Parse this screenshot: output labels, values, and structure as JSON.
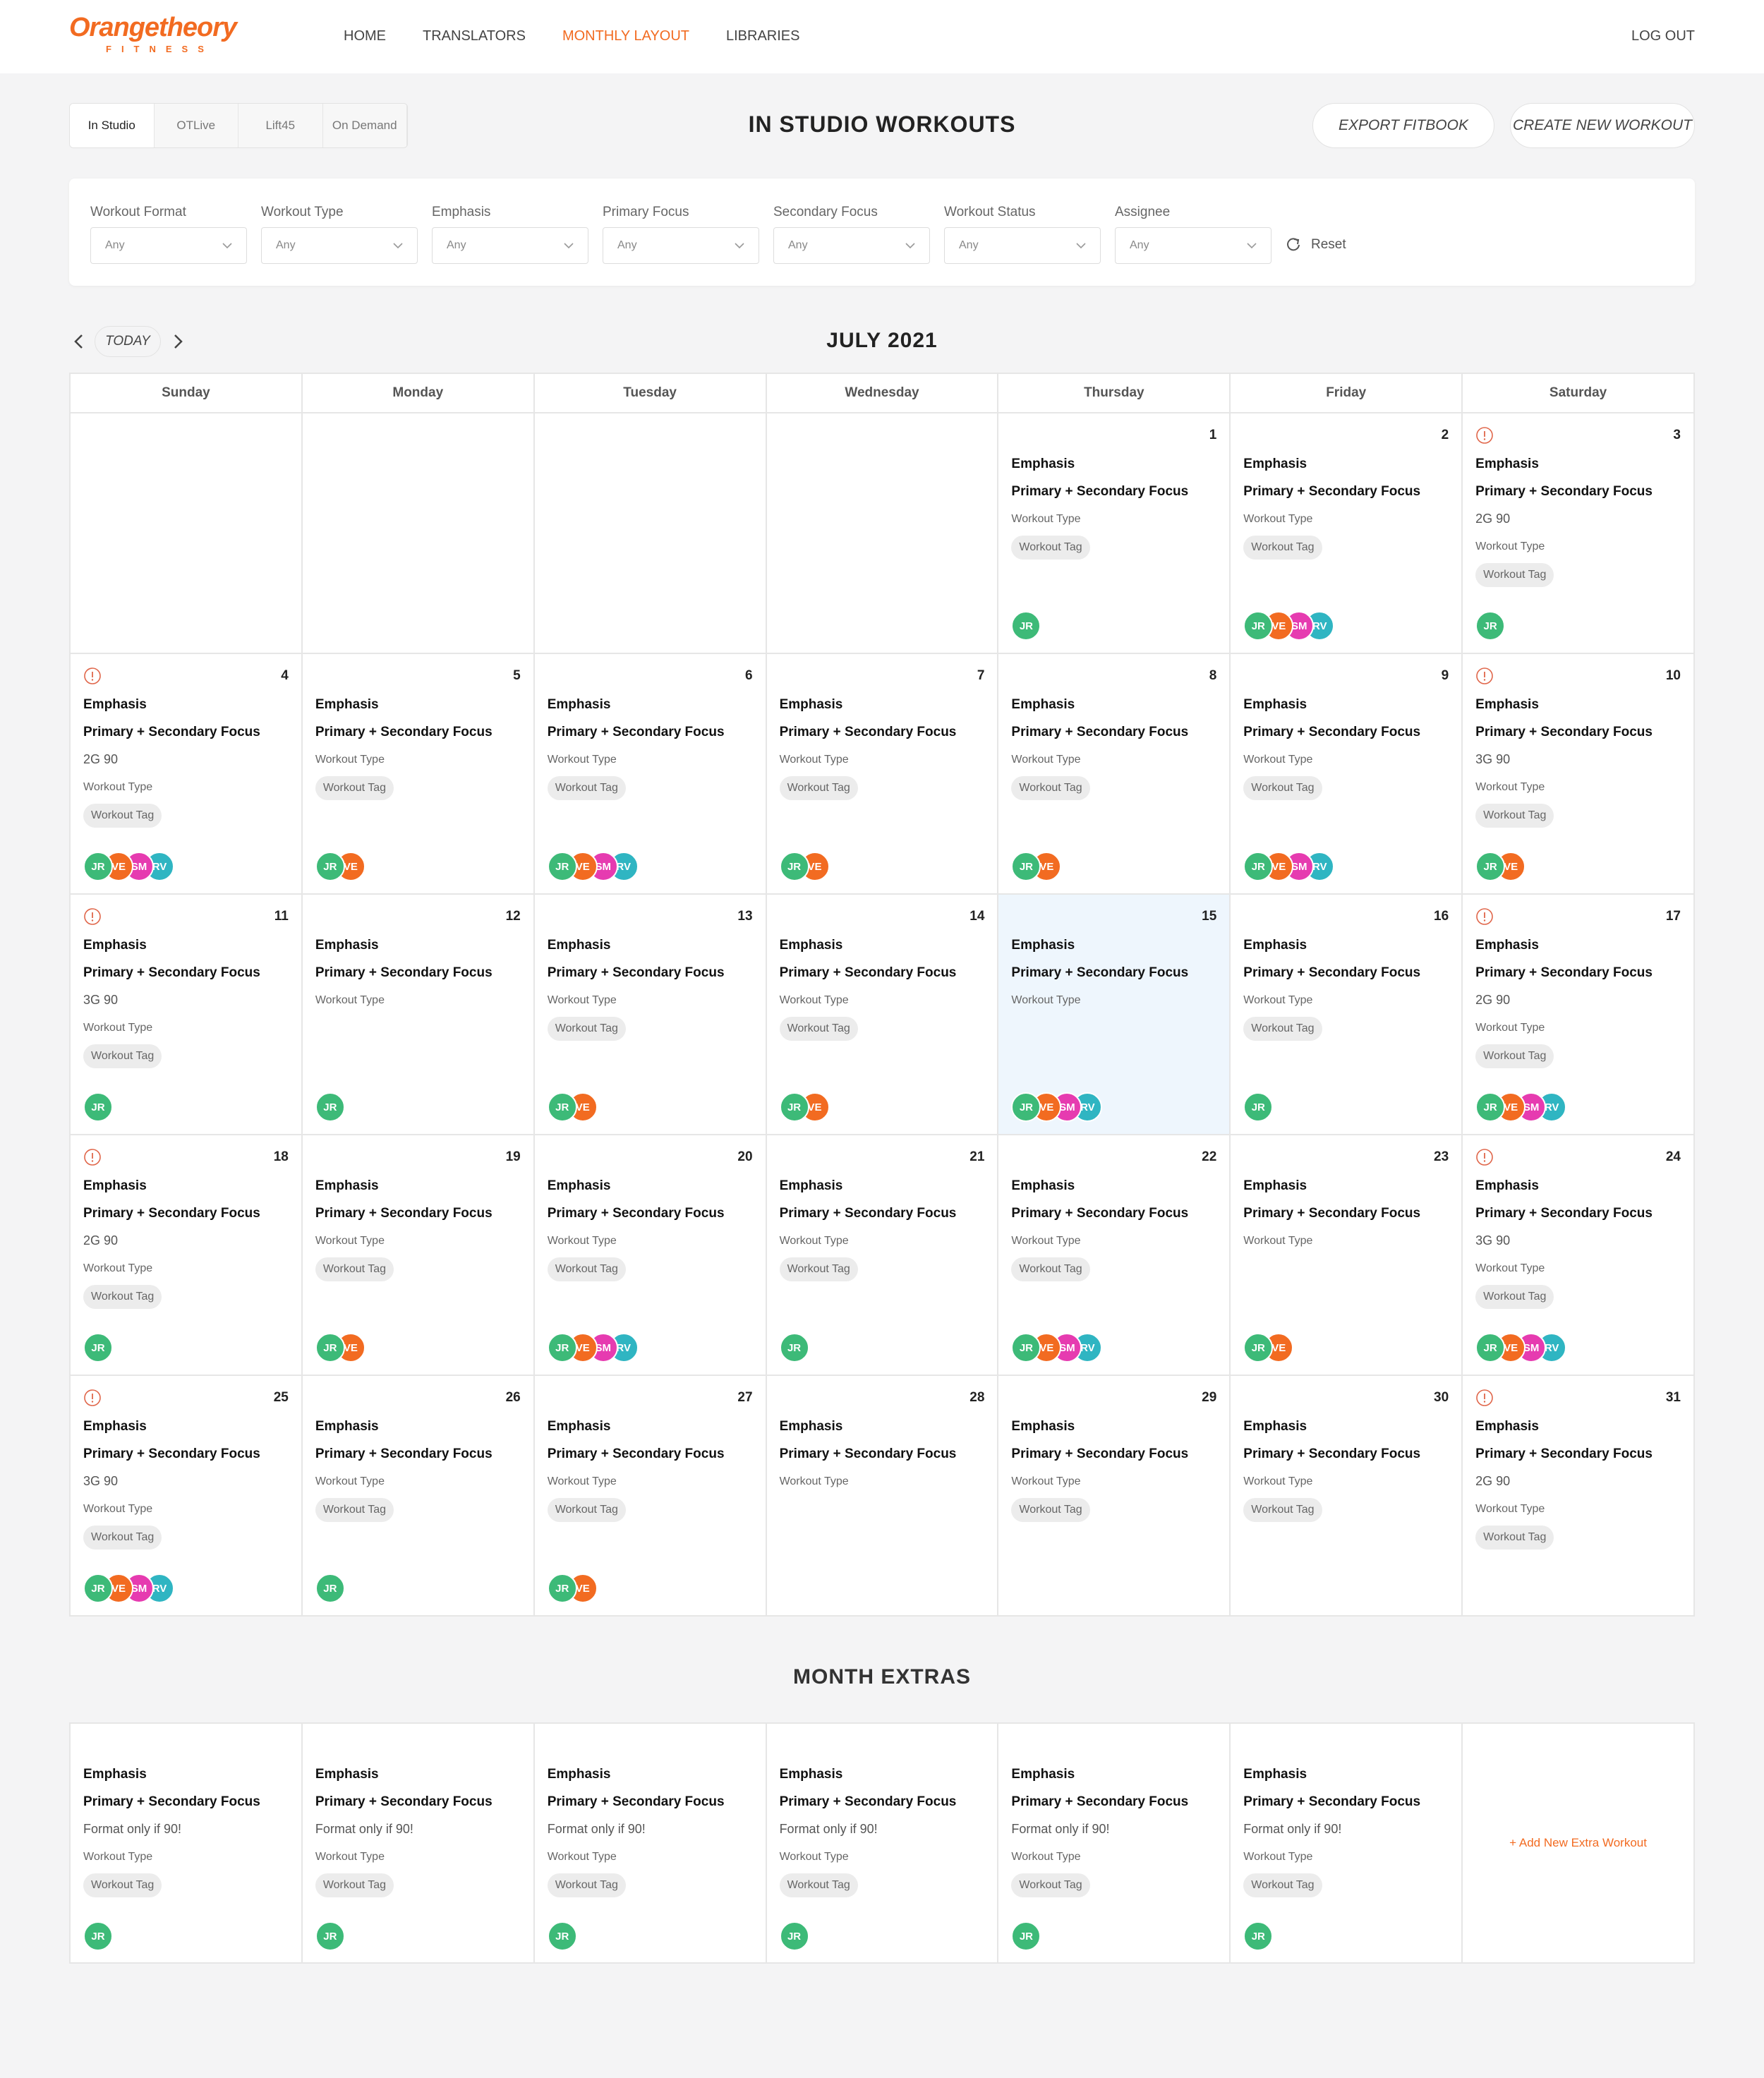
{
  "header": {
    "logo": "Orangetheory",
    "logo_sub": "FITNESS",
    "nav": [
      "HOME",
      "TRANSLATORS",
      "MONTHLY LAYOUT",
      "LIBRARIES"
    ],
    "active_nav": 2,
    "logout": "LOG OUT"
  },
  "toolbar": {
    "tabs": [
      "In Studio",
      "OTLive",
      "Lift45",
      "On Demand"
    ],
    "active_tab": 0,
    "title": "IN STUDIO WORKOUTS",
    "buttons": [
      "EXPORT FITBOOK",
      "CREATE NEW WORKOUT"
    ]
  },
  "filters": {
    "fields": [
      {
        "label": "Workout Format",
        "value": "Any"
      },
      {
        "label": "Workout Type",
        "value": "Any"
      },
      {
        "label": "Emphasis",
        "value": "Any"
      },
      {
        "label": "Primary Focus",
        "value": "Any"
      },
      {
        "label": "Secondary Focus",
        "value": "Any"
      },
      {
        "label": "Workout Status",
        "value": "Any"
      },
      {
        "label": "Assignee",
        "value": "Any"
      }
    ],
    "reset": "Reset"
  },
  "calendar": {
    "today": "TODAY",
    "month": "JULY 2021",
    "weekdays": [
      "Sunday",
      "Monday",
      "Tuesday",
      "Wednesday",
      "Thursday",
      "Friday",
      "Saturday"
    ],
    "avatar_colors": {
      "JR": "#3dba78",
      "VE": "#f26b21",
      "SM": "#e63bb0",
      "RV": "#2fb5c2"
    },
    "days": [
      null,
      null,
      null,
      null,
      {
        "day": 1,
        "emphasis": "Emphasis",
        "focus": "Primary + Secondary Focus",
        "type": "Workout Type",
        "tag": "Workout Tag",
        "assignees": [
          "JR"
        ]
      },
      {
        "day": 2,
        "emphasis": "Emphasis",
        "focus": "Primary + Secondary Focus",
        "type": "Workout Type",
        "tag": "Workout Tag",
        "assignees": [
          "JR",
          "VE",
          "SM",
          "RV"
        ]
      },
      {
        "day": 3,
        "warning": true,
        "emphasis": "Emphasis",
        "focus": "Primary + Secondary Focus",
        "format": "2G 90",
        "type": "Workout Type",
        "tag": "Workout Tag",
        "assignees": [
          "JR"
        ]
      },
      {
        "day": 4,
        "warning": true,
        "emphasis": "Emphasis",
        "focus": "Primary + Secondary Focus",
        "format": "2G 90",
        "type": "Workout Type",
        "tag": "Workout Tag",
        "assignees": [
          "JR",
          "VE",
          "SM",
          "RV"
        ]
      },
      {
        "day": 5,
        "emphasis": "Emphasis",
        "focus": "Primary + Secondary Focus",
        "type": "Workout Type",
        "tag": "Workout Tag",
        "assignees": [
          "JR",
          "VE"
        ]
      },
      {
        "day": 6,
        "emphasis": "Emphasis",
        "focus": "Primary + Secondary Focus",
        "type": "Workout Type",
        "tag": "Workout Tag",
        "assignees": [
          "JR",
          "VE",
          "SM",
          "RV"
        ]
      },
      {
        "day": 7,
        "emphasis": "Emphasis",
        "focus": "Primary + Secondary Focus",
        "type": "Workout Type",
        "tag": "Workout Tag",
        "assignees": [
          "JR",
          "VE"
        ]
      },
      {
        "day": 8,
        "emphasis": "Emphasis",
        "focus": "Primary + Secondary Focus",
        "type": "Workout Type",
        "tag": "Workout Tag",
        "assignees": [
          "JR",
          "VE"
        ]
      },
      {
        "day": 9,
        "emphasis": "Emphasis",
        "focus": "Primary + Secondary Focus",
        "type": "Workout Type",
        "tag": "Workout Tag",
        "assignees": [
          "JR",
          "VE",
          "SM",
          "RV"
        ]
      },
      {
        "day": 10,
        "warning": true,
        "emphasis": "Emphasis",
        "focus": "Primary + Secondary Focus",
        "format": "3G 90",
        "type": "Workout Type",
        "tag": "Workout Tag",
        "assignees": [
          "JR",
          "VE"
        ]
      },
      {
        "day": 11,
        "warning": true,
        "emphasis": "Emphasis",
        "focus": "Primary + Secondary Focus",
        "format": "3G 90",
        "type": "Workout Type",
        "tag": "Workout Tag",
        "assignees": [
          "JR"
        ]
      },
      {
        "day": 12,
        "emphasis": "Emphasis",
        "focus": "Primary + Secondary Focus",
        "type": "Workout Type",
        "assignees": [
          "JR"
        ]
      },
      {
        "day": 13,
        "emphasis": "Emphasis",
        "focus": "Primary + Secondary Focus",
        "type": "Workout Type",
        "tag": "Workout Tag",
        "assignees": [
          "JR",
          "VE"
        ]
      },
      {
        "day": 14,
        "emphasis": "Emphasis",
        "focus": "Primary + Secondary Focus",
        "type": "Workout Type",
        "tag": "Workout Tag",
        "assignees": [
          "JR",
          "VE"
        ]
      },
      {
        "day": 15,
        "highlight": true,
        "emphasis": "Emphasis",
        "focus": "Primary + Secondary Focus",
        "type": "Workout Type",
        "assignees": [
          "JR",
          "VE",
          "SM",
          "RV"
        ]
      },
      {
        "day": 16,
        "emphasis": "Emphasis",
        "focus": "Primary + Secondary Focus",
        "type": "Workout Type",
        "tag": "Workout Tag",
        "assignees": [
          "JR"
        ]
      },
      {
        "day": 17,
        "warning": true,
        "emphasis": "Emphasis",
        "focus": "Primary + Secondary Focus",
        "format": "2G 90",
        "type": "Workout Type",
        "tag": "Workout Tag",
        "assignees": [
          "JR",
          "VE",
          "SM",
          "RV"
        ]
      },
      {
        "day": 18,
        "warning": true,
        "emphasis": "Emphasis",
        "focus": "Primary + Secondary Focus",
        "format": "2G 90",
        "type": "Workout Type",
        "tag": "Workout Tag",
        "assignees": [
          "JR"
        ]
      },
      {
        "day": 19,
        "emphasis": "Emphasis",
        "focus": "Primary + Secondary Focus",
        "type": "Workout Type",
        "tag": "Workout Tag",
        "assignees": [
          "JR",
          "VE"
        ]
      },
      {
        "day": 20,
        "emphasis": "Emphasis",
        "focus": "Primary + Secondary Focus",
        "type": "Workout Type",
        "tag": "Workout Tag",
        "assignees": [
          "JR",
          "VE",
          "SM",
          "RV"
        ]
      },
      {
        "day": 21,
        "emphasis": "Emphasis",
        "focus": "Primary + Secondary Focus",
        "type": "Workout Type",
        "tag": "Workout Tag",
        "assignees": [
          "JR"
        ]
      },
      {
        "day": 22,
        "emphasis": "Emphasis",
        "focus": "Primary + Secondary Focus",
        "type": "Workout Type",
        "tag": "Workout Tag",
        "assignees": [
          "JR",
          "VE",
          "SM",
          "RV"
        ]
      },
      {
        "day": 23,
        "emphasis": "Emphasis",
        "focus": "Primary + Secondary Focus",
        "type": "Workout Type",
        "assignees": [
          "JR",
          "VE"
        ]
      },
      {
        "day": 24,
        "warning": true,
        "emphasis": "Emphasis",
        "focus": "Primary + Secondary Focus",
        "format": "3G 90",
        "type": "Workout Type",
        "tag": "Workout Tag",
        "assignees": [
          "JR",
          "VE",
          "SM",
          "RV"
        ]
      },
      {
        "day": 25,
        "warning": true,
        "emphasis": "Emphasis",
        "focus": "Primary + Secondary Focus",
        "format": "3G 90",
        "type": "Workout Type",
        "tag": "Workout Tag",
        "assignees": [
          "JR",
          "VE",
          "SM",
          "RV"
        ]
      },
      {
        "day": 26,
        "emphasis": "Emphasis",
        "focus": "Primary + Secondary Focus",
        "type": "Workout Type",
        "tag": "Workout Tag",
        "assignees": [
          "JR"
        ]
      },
      {
        "day": 27,
        "emphasis": "Emphasis",
        "focus": "Primary + Secondary Focus",
        "type": "Workout Type",
        "tag": "Workout Tag",
        "assignees": [
          "JR",
          "VE"
        ]
      },
      {
        "day": 28,
        "emphasis": "Emphasis",
        "focus": "Primary + Secondary Focus",
        "type": "Workout Type",
        "assignees": []
      },
      {
        "day": 29,
        "emphasis": "Emphasis",
        "focus": "Primary + Secondary Focus",
        "type": "Workout Type",
        "tag": "Workout Tag",
        "assignees": []
      },
      {
        "day": 30,
        "emphasis": "Emphasis",
        "focus": "Primary + Secondary Focus",
        "type": "Workout Type",
        "tag": "Workout Tag",
        "assignees": []
      },
      {
        "day": 31,
        "warning": true,
        "emphasis": "Emphasis",
        "focus": "Primary + Secondary Focus",
        "format": "2G 90",
        "type": "Workout Type",
        "tag": "Workout Tag",
        "assignees": []
      }
    ]
  },
  "extras": {
    "title": "MONTH EXTRAS",
    "items": [
      {
        "emphasis": "Emphasis",
        "focus": "Primary + Secondary Focus",
        "format": "Format only if 90!",
        "type": "Workout Type",
        "tag": "Workout Tag",
        "assignees": [
          "JR"
        ]
      },
      {
        "emphasis": "Emphasis",
        "focus": "Primary + Secondary Focus",
        "format": "Format only if 90!",
        "type": "Workout Type",
        "tag": "Workout Tag",
        "assignees": [
          "JR"
        ]
      },
      {
        "emphasis": "Emphasis",
        "focus": "Primary + Secondary Focus",
        "format": "Format only if 90!",
        "type": "Workout Type",
        "tag": "Workout Tag",
        "assignees": [
          "JR"
        ]
      },
      {
        "emphasis": "Emphasis",
        "focus": "Primary + Secondary Focus",
        "format": "Format only if 90!",
        "type": "Workout Type",
        "tag": "Workout Tag",
        "assignees": [
          "JR"
        ]
      },
      {
        "emphasis": "Emphasis",
        "focus": "Primary + Secondary Focus",
        "format": "Format only if 90!",
        "type": "Workout Type",
        "tag": "Workout Tag",
        "assignees": [
          "JR"
        ]
      },
      {
        "emphasis": "Emphasis",
        "focus": "Primary + Secondary Focus",
        "format": "Format only if 90!",
        "type": "Workout Type",
        "tag": "Workout Tag",
        "assignees": [
          "JR"
        ]
      }
    ],
    "add": "+ Add New Extra Workout"
  }
}
